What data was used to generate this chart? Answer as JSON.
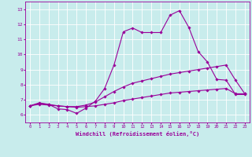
{
  "xlabel": "Windchill (Refroidissement éolien,°C)",
  "xlim": [
    -0.5,
    23.5
  ],
  "ylim": [
    5.5,
    13.5
  ],
  "yticks": [
    6,
    7,
    8,
    9,
    10,
    11,
    12,
    13
  ],
  "xticks": [
    0,
    1,
    2,
    3,
    4,
    5,
    6,
    7,
    8,
    9,
    10,
    11,
    12,
    13,
    14,
    15,
    16,
    17,
    18,
    19,
    20,
    21,
    22,
    23
  ],
  "bg_color": "#c8ecec",
  "line_color": "#990099",
  "grid_color": "#ffffff",
  "series": [
    [
      6.6,
      6.8,
      6.7,
      6.4,
      6.35,
      6.1,
      6.45,
      6.9,
      7.75,
      9.3,
      11.5,
      11.75,
      11.45,
      11.45,
      11.45,
      12.6,
      12.9,
      11.8,
      10.2,
      9.5,
      8.35,
      8.3,
      7.35,
      7.35
    ],
    [
      6.6,
      6.75,
      6.7,
      6.6,
      6.55,
      6.55,
      6.65,
      6.85,
      7.2,
      7.55,
      7.85,
      8.1,
      8.25,
      8.4,
      8.55,
      8.7,
      8.8,
      8.9,
      9.0,
      9.1,
      9.2,
      9.3,
      8.3,
      7.4
    ],
    [
      6.6,
      6.7,
      6.65,
      6.6,
      6.55,
      6.5,
      6.55,
      6.6,
      6.7,
      6.8,
      6.95,
      7.05,
      7.15,
      7.25,
      7.35,
      7.45,
      7.5,
      7.55,
      7.6,
      7.65,
      7.7,
      7.75,
      7.4,
      7.4
    ]
  ]
}
